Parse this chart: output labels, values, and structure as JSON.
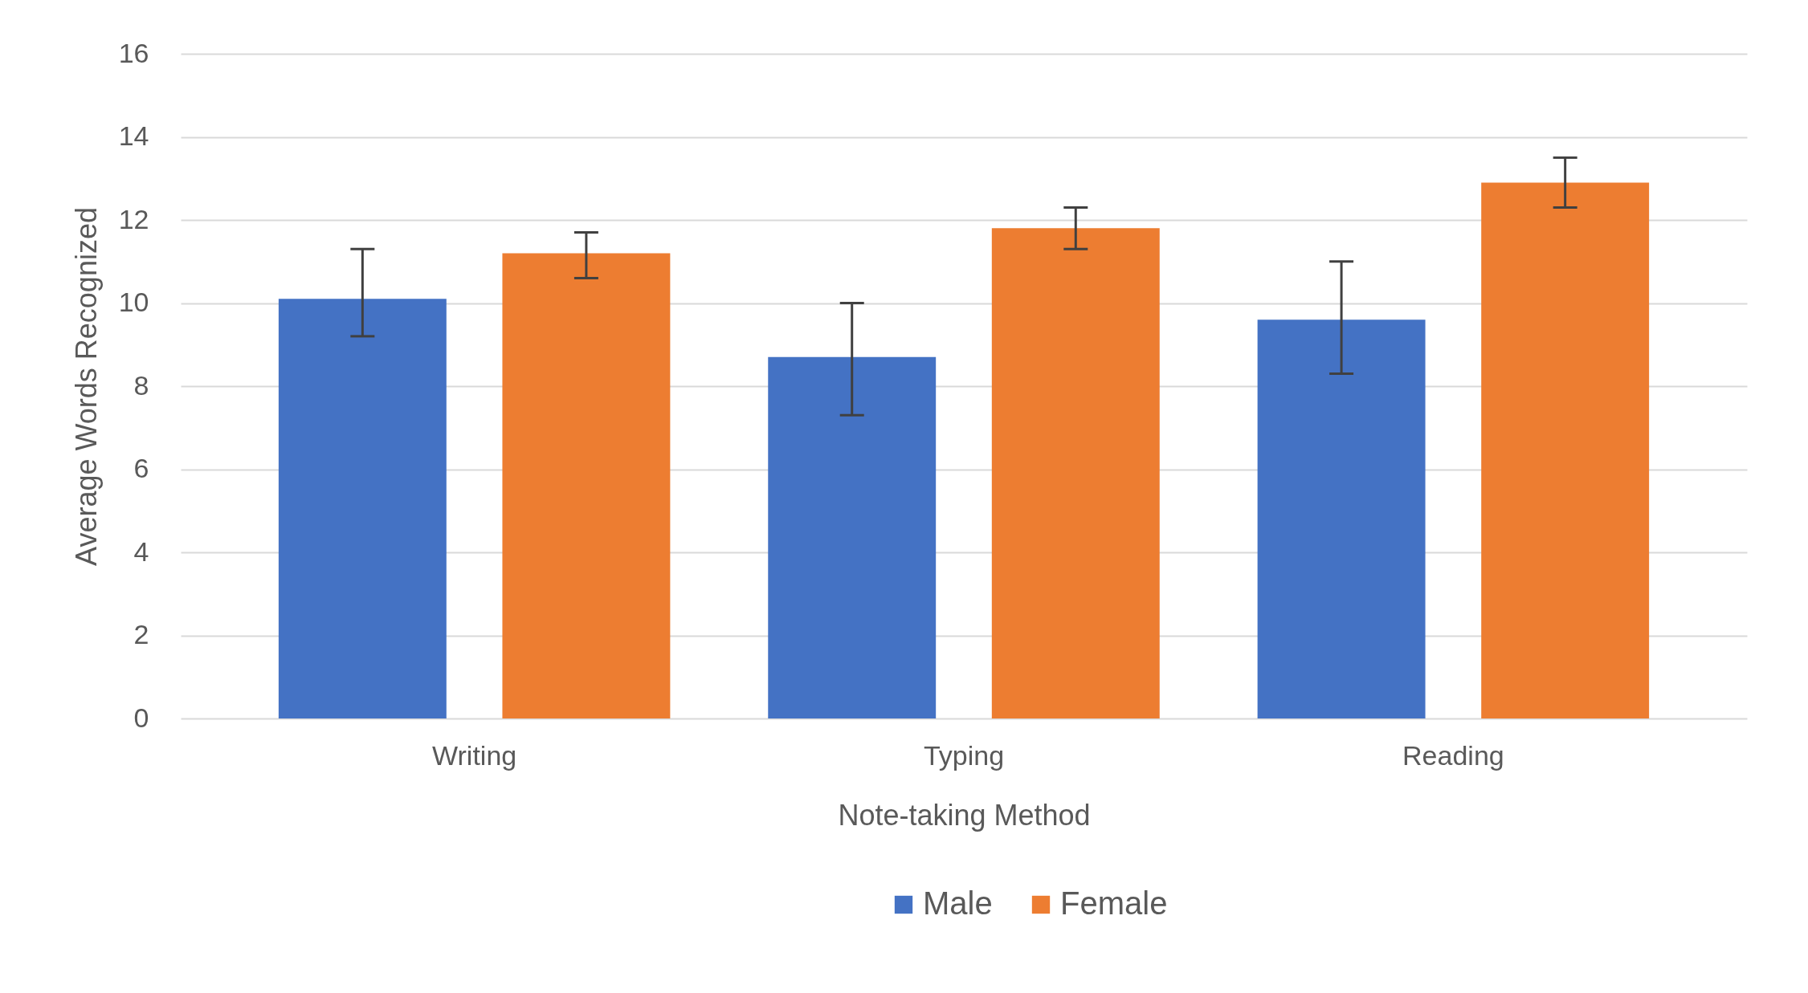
{
  "chart_data": {
    "type": "bar",
    "xlabel": "Note-taking Method",
    "ylabel": "Average Words Recognized",
    "categories": [
      "Writing",
      "Typing",
      "Reading"
    ],
    "series": [
      {
        "name": "Male",
        "color": "#4472c4",
        "values": [
          10.1,
          8.7,
          9.6
        ],
        "errors": [
          [
            9.2,
            11.3
          ],
          [
            7.3,
            10.0
          ],
          [
            8.3,
            11.0
          ]
        ]
      },
      {
        "name": "Female",
        "color": "#ed7d31",
        "values": [
          11.2,
          11.8,
          12.9
        ],
        "errors": [
          [
            10.6,
            11.7
          ],
          [
            11.3,
            12.3
          ],
          [
            12.3,
            13.5
          ]
        ]
      }
    ],
    "ylim": [
      0,
      16
    ],
    "yticks": [
      0,
      2,
      4,
      6,
      8,
      10,
      12,
      14,
      16
    ],
    "grid": "y",
    "legend": "bottom"
  }
}
